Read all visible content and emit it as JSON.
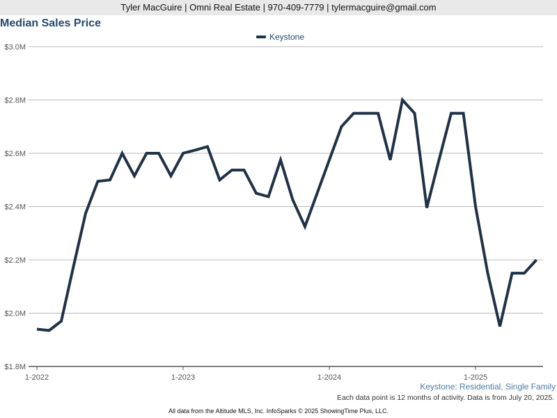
{
  "header": {
    "contact_line": "Tyler MacGuire | Omni Real Estate | 970-409-7779 | tylermacguire@gmail.com"
  },
  "chart_data": {
    "type": "line",
    "title": "Median Sales Price",
    "xlabel": "",
    "ylabel": "",
    "ylim": [
      1.8,
      3.0
    ],
    "y_unit": "millions USD",
    "y_tick_labels": [
      "$1.8M",
      "$2.0M",
      "$2.2M",
      "$2.4M",
      "$2.6M",
      "$2.8M",
      "$3.0M"
    ],
    "y_ticks": [
      1.8,
      2.0,
      2.2,
      2.4,
      2.6,
      2.8,
      3.0
    ],
    "x_tick_labels": [
      "1-2022",
      "1-2023",
      "1-2024",
      "1-2025"
    ],
    "x_start": "2022-01",
    "grid": true,
    "legend_position": "top-center",
    "color": "#1f3247",
    "series": [
      {
        "name": "Keystone",
        "x": [
          "2022-01",
          "2022-02",
          "2022-03",
          "2022-04",
          "2022-05",
          "2022-06",
          "2022-07",
          "2022-08",
          "2022-09",
          "2022-10",
          "2022-11",
          "2022-12",
          "2023-01",
          "2023-02",
          "2023-03",
          "2023-04",
          "2023-05",
          "2023-06",
          "2023-07",
          "2023-08",
          "2023-09",
          "2023-10",
          "2023-11",
          "2023-12",
          "2024-01",
          "2024-02",
          "2024-03",
          "2024-04",
          "2024-05",
          "2024-06",
          "2024-07",
          "2024-08",
          "2024-09",
          "2024-10",
          "2024-11",
          "2024-12",
          "2025-01",
          "2025-02",
          "2025-03",
          "2025-04",
          "2025-05",
          "2025-06"
        ],
        "values": [
          1.94,
          1.935,
          1.97,
          2.175,
          2.375,
          2.495,
          2.5,
          2.6,
          2.515,
          2.6,
          2.6,
          2.515,
          2.6,
          2.612,
          2.625,
          2.5,
          2.537,
          2.537,
          2.45,
          2.437,
          2.575,
          2.425,
          2.325,
          2.45,
          2.575,
          2.7,
          2.75,
          2.75,
          2.75,
          2.575,
          2.8,
          2.75,
          2.395,
          2.575,
          2.75,
          2.75,
          2.4,
          2.15,
          1.95,
          2.15,
          2.15,
          2.2
        ]
      }
    ]
  },
  "notes": {
    "market_label": "Keystone: Residential, Single Family",
    "data_note": "Each data point is 12 months of activity. Data is from July 20, 2025.",
    "footer": "All data from the Altitude MLS, Inc. InfoSparks © 2025 ShowingTime Plus, LLC."
  }
}
